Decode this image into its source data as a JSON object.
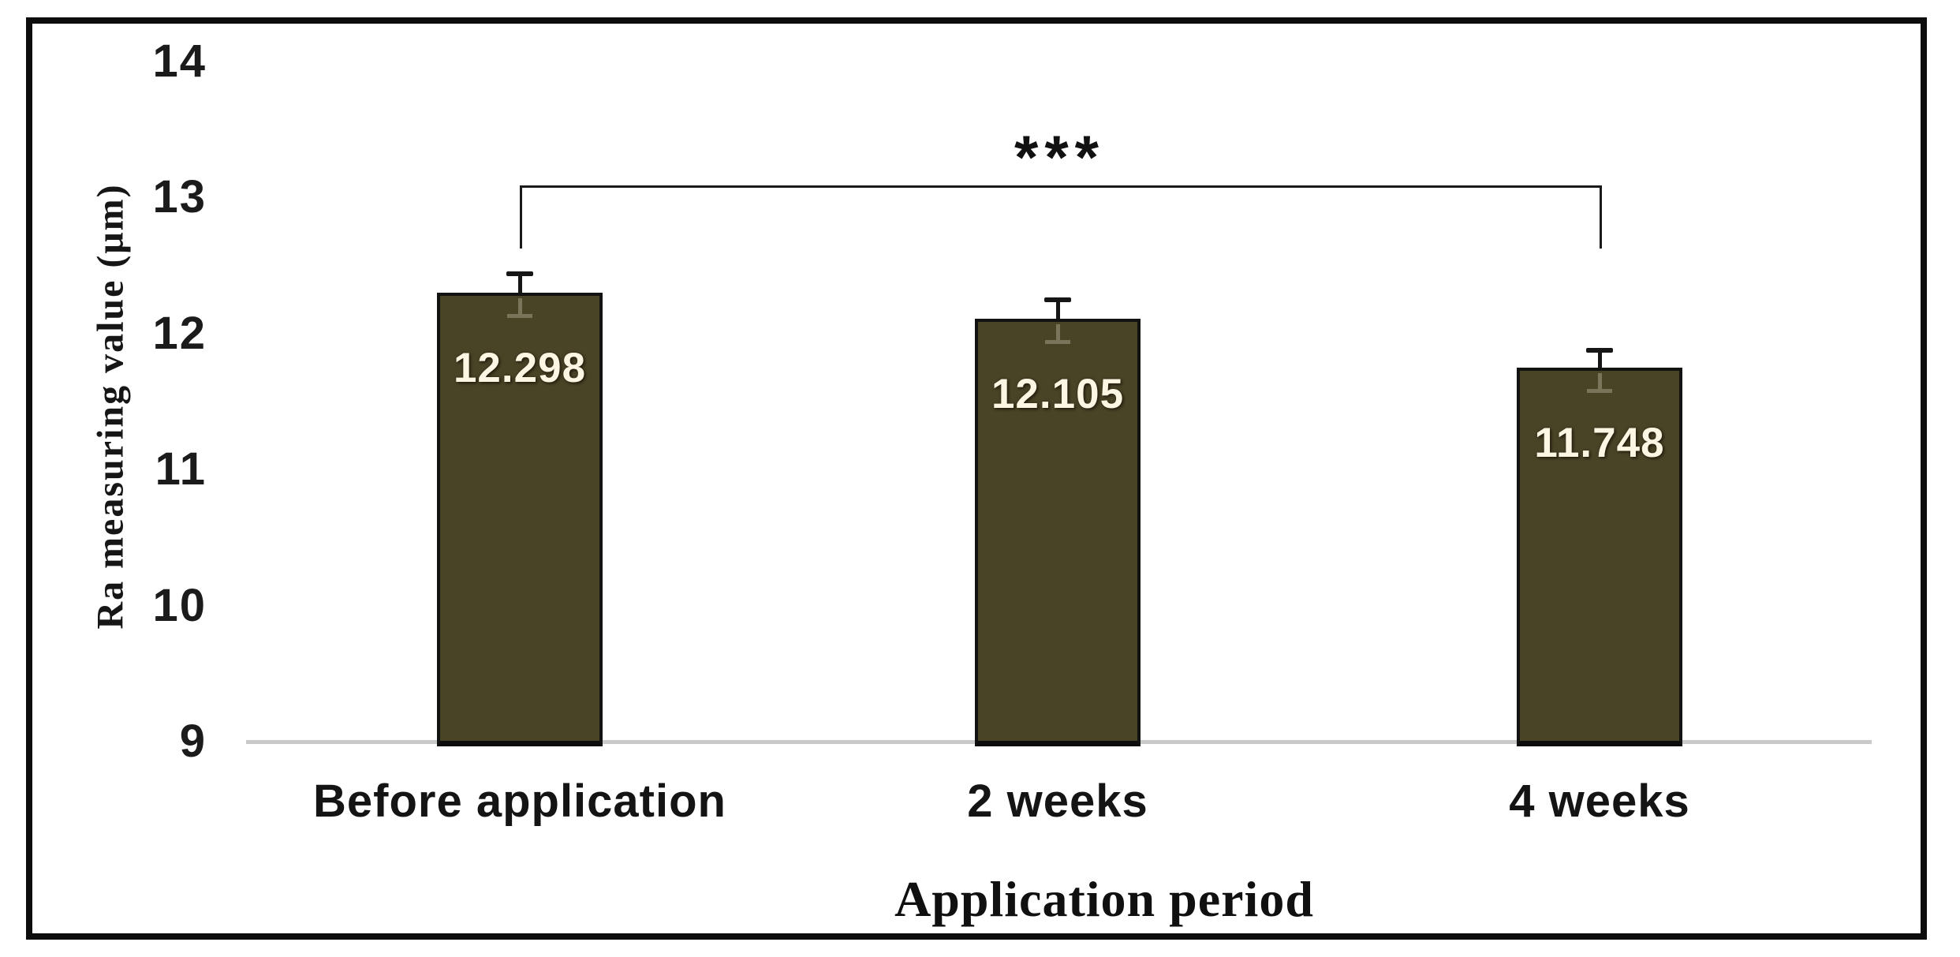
{
  "figure": {
    "background": "#ffffff",
    "frame_color": "#0d0d0d"
  },
  "chart_data": {
    "type": "bar",
    "title": "",
    "categories": [
      "Before application",
      "2 weeks",
      "4 weeks"
    ],
    "values": [
      12.298,
      12.105,
      11.748
    ],
    "errors": [
      0.14,
      0.14,
      0.13
    ],
    "value_labels": [
      "12.298",
      "12.105",
      "11.748"
    ],
    "xlabel": "Application period",
    "ylabel": "Ra measuring value (μm)",
    "ylim": [
      9,
      14
    ],
    "yticks": [
      9,
      10,
      11,
      12,
      13,
      14
    ],
    "grid": false,
    "legend": "none",
    "bar_color": "#4a4427",
    "bar_border_color": "#121212",
    "value_label_color": "#fcf6e3",
    "baseline_color": "#c9c9c9",
    "significance": {
      "between": [
        "Before application",
        "4 weeks"
      ],
      "label": "***"
    }
  }
}
